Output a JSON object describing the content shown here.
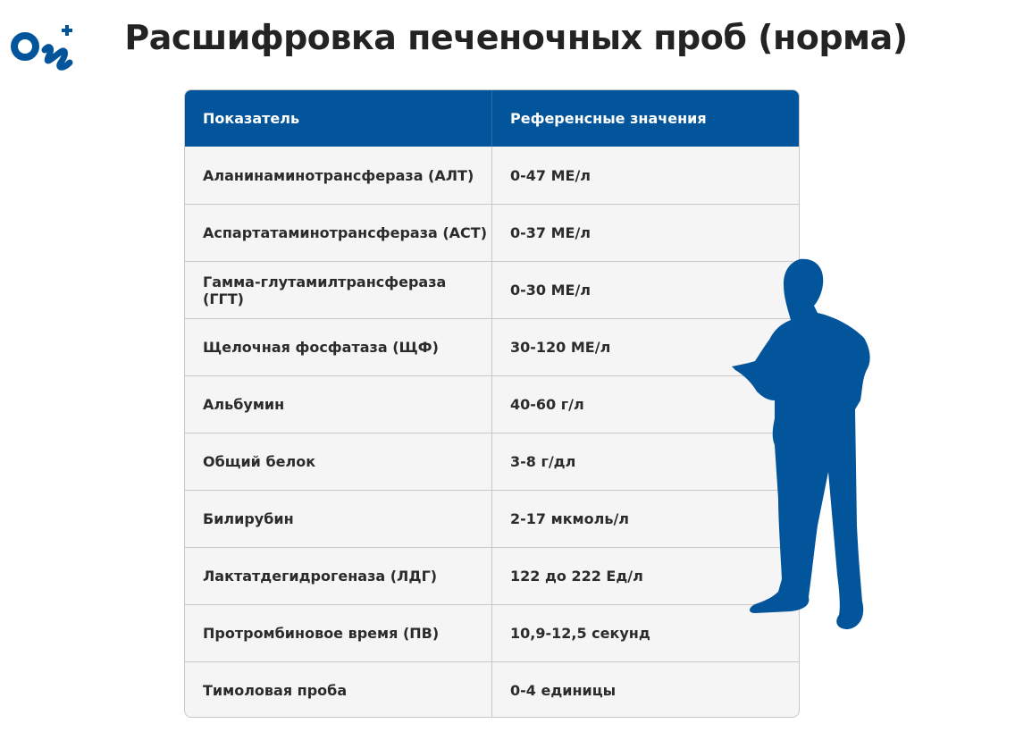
{
  "logo": {
    "text": "On+",
    "color": "#03559b"
  },
  "title": "Расшифровка печеночных проб (норма)",
  "table": {
    "headers": [
      "Показатель",
      "Референсные значения"
    ],
    "rows": [
      [
        "Аланинаминотрансфераза (АЛТ)",
        "0-47 МЕ/л"
      ],
      [
        "Аспартатаминотрансфераза (АСТ)",
        "0-37 МЕ/л"
      ],
      [
        "Гамма-глутамилтрансфераза (ГГТ)",
        "0-30 МЕ/л"
      ],
      [
        "Щелочная фосфатаза (ЩФ)",
        "30-120 МЕ/л"
      ],
      [
        "Альбумин",
        "40-60 г/л"
      ],
      [
        "Общий белок",
        "3-8 г/дл"
      ],
      [
        "Билирубин",
        "2-17 мкмоль/л"
      ],
      [
        "Лактатдегидрогеназа (ЛДГ)",
        "122 до 222 Ед/л"
      ],
      [
        "Протромбиновое время (ПВ)",
        "10,9-12,5 секунд"
      ],
      [
        "Тимоловая проба",
        "0-4 единицы"
      ]
    ]
  },
  "colors": {
    "header_bg": "#03559b",
    "row_bg": "#f5f5f5",
    "silhouette": "#03559b"
  },
  "illustration": "person-silhouette-icon"
}
